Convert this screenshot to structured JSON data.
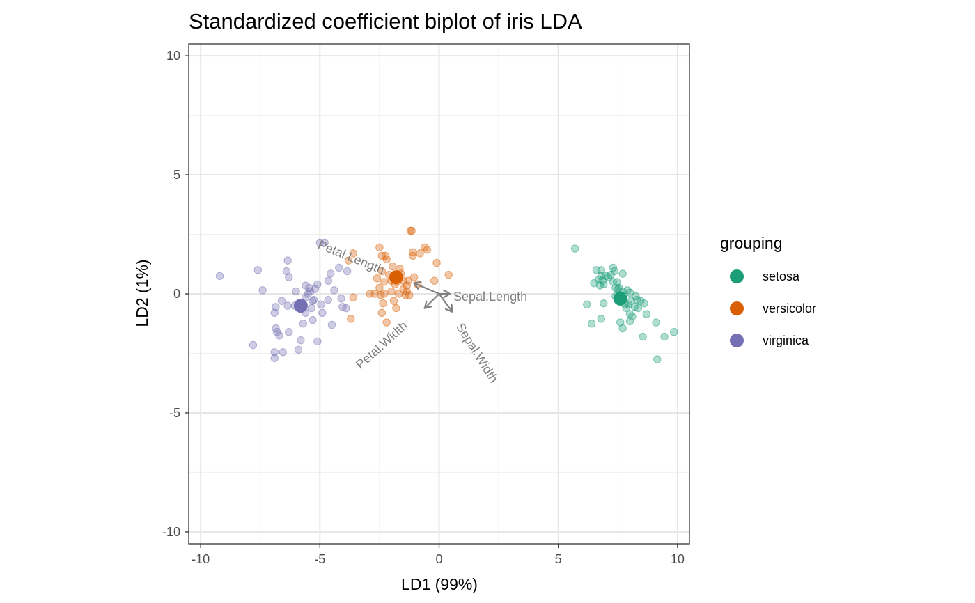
{
  "chart_data": {
    "type": "scatter",
    "title": "Standardized coefficient biplot of iris LDA",
    "xlabel": "LD1 (99%)",
    "ylabel": "LD2 (1%)",
    "xlim": [
      -10.5,
      10.5
    ],
    "ylim": [
      -10.5,
      10.5
    ],
    "x_ticks": [
      -10,
      -5,
      0,
      5,
      10
    ],
    "y_ticks": [
      -10,
      -5,
      0,
      5,
      10
    ],
    "x_tick_labels": [
      "-10",
      "-5",
      "0",
      "5",
      "10"
    ],
    "y_tick_labels": [
      "-10",
      "-5",
      "0",
      "5",
      "10"
    ],
    "grid": true,
    "legend_title": "grouping",
    "legend_position": "right",
    "series": [
      {
        "name": "setosa",
        "color": "#1b9e77",
        "centroid": [
          7.6,
          -0.2
        ],
        "points": [
          [
            5.7,
            1.9
          ],
          [
            6.2,
            -0.45
          ],
          [
            6.4,
            -1.25
          ],
          [
            6.5,
            0.45
          ],
          [
            6.6,
            1.0
          ],
          [
            6.7,
            0.6
          ],
          [
            6.8,
            1.0
          ],
          [
            6.8,
            0.75
          ],
          [
            6.8,
            -1.05
          ],
          [
            6.85,
            0.55
          ],
          [
            6.9,
            0.4
          ],
          [
            6.9,
            -0.4
          ],
          [
            7.0,
            0.75
          ],
          [
            7.1,
            0.7
          ],
          [
            7.2,
            0.8
          ],
          [
            7.3,
            1.1
          ],
          [
            7.3,
            0.5
          ],
          [
            7.35,
            0.95
          ],
          [
            7.4,
            0.25
          ],
          [
            7.4,
            -0.1
          ],
          [
            7.45,
            0.5
          ],
          [
            7.5,
            0.2
          ],
          [
            7.55,
            0.25
          ],
          [
            7.6,
            -1.2
          ],
          [
            7.6,
            -0.05
          ],
          [
            7.7,
            -1.45
          ],
          [
            7.7,
            0.85
          ],
          [
            7.7,
            0.1
          ],
          [
            7.8,
            -0.45
          ],
          [
            7.85,
            -0.6
          ],
          [
            7.9,
            0.15
          ],
          [
            7.95,
            -0.45
          ],
          [
            8.0,
            -0.85
          ],
          [
            8.0,
            0.05
          ],
          [
            8.0,
            -1.15
          ],
          [
            8.05,
            -0.3
          ],
          [
            8.1,
            -0.95
          ],
          [
            8.2,
            -0.55
          ],
          [
            8.25,
            -0.1
          ],
          [
            8.3,
            -0.25
          ],
          [
            8.35,
            -0.6
          ],
          [
            8.45,
            -0.3
          ],
          [
            8.55,
            -1.8
          ],
          [
            8.6,
            -0.4
          ],
          [
            8.7,
            -0.85
          ],
          [
            9.1,
            -1.2
          ],
          [
            9.15,
            -2.75
          ],
          [
            9.45,
            -1.8
          ],
          [
            9.85,
            -1.6
          ],
          [
            6.75,
            0.35
          ]
        ]
      },
      {
        "name": "versicolor",
        "color": "#d95f02",
        "centroid": [
          -1.8,
          0.7
        ],
        "points": [
          [
            -3.8,
            1.4
          ],
          [
            -3.6,
            1.7
          ],
          [
            -3.6,
            -0.15
          ],
          [
            -3.7,
            -1.05
          ],
          [
            -2.9,
            0.0
          ],
          [
            -2.7,
            0.0
          ],
          [
            -2.6,
            0.65
          ],
          [
            -2.5,
            1.95
          ],
          [
            -2.5,
            0.25
          ],
          [
            -2.45,
            -0.05
          ],
          [
            -2.4,
            0.95
          ],
          [
            -2.4,
            1.6
          ],
          [
            -2.35,
            -0.4
          ],
          [
            -2.4,
            -0.8
          ],
          [
            -2.3,
            0.0
          ],
          [
            -2.3,
            0.5
          ],
          [
            -2.25,
            1.6
          ],
          [
            -2.2,
            1.45
          ],
          [
            -2.2,
            -1.2
          ],
          [
            -2.1,
            0.8
          ],
          [
            -2.0,
            0.55
          ],
          [
            -2.0,
            0.1
          ],
          [
            -1.95,
            1.15
          ],
          [
            -1.9,
            -0.3
          ],
          [
            -1.85,
            0.4
          ],
          [
            -1.8,
            -0.6
          ],
          [
            -1.8,
            0.75
          ],
          [
            -1.75,
            0.5
          ],
          [
            -1.7,
            0.0
          ],
          [
            -1.65,
            1.05
          ],
          [
            -1.6,
            0.85
          ],
          [
            -1.5,
            0.2
          ],
          [
            -1.5,
            0.55
          ],
          [
            -1.4,
            -0.05
          ],
          [
            -1.35,
            0.35
          ],
          [
            -1.35,
            0.1
          ],
          [
            -1.3,
            0.55
          ],
          [
            -1.25,
            -0.05
          ],
          [
            -1.2,
            2.65
          ],
          [
            -1.15,
            2.65
          ],
          [
            -1.1,
            1.75
          ],
          [
            -1.1,
            1.6
          ],
          [
            -1.05,
            0.7
          ],
          [
            -0.9,
            0.4
          ],
          [
            -0.8,
            1.7
          ],
          [
            -0.6,
            1.95
          ],
          [
            -0.5,
            1.85
          ],
          [
            -0.2,
            0.55
          ],
          [
            -0.1,
            1.3
          ],
          [
            0.4,
            0.8
          ]
        ]
      },
      {
        "name": "virginica",
        "color": "#7570b3",
        "centroid": [
          -5.8,
          -0.5
        ],
        "points": [
          [
            -9.2,
            0.75
          ],
          [
            -7.8,
            -2.15
          ],
          [
            -7.6,
            1.0
          ],
          [
            -7.4,
            0.15
          ],
          [
            -6.9,
            -2.7
          ],
          [
            -6.9,
            -2.45
          ],
          [
            -6.9,
            -0.8
          ],
          [
            -6.85,
            -0.55
          ],
          [
            -6.85,
            -1.45
          ],
          [
            -6.8,
            -1.6
          ],
          [
            -6.7,
            -1.75
          ],
          [
            -6.6,
            -0.3
          ],
          [
            -6.55,
            -2.45
          ],
          [
            -6.4,
            0.95
          ],
          [
            -6.35,
            -0.5
          ],
          [
            -6.35,
            1.4
          ],
          [
            -6.3,
            -1.6
          ],
          [
            -6.3,
            0.7
          ],
          [
            -6.0,
            0.1
          ],
          [
            -5.9,
            -2.35
          ],
          [
            -5.8,
            -1.95
          ],
          [
            -5.7,
            -1.25
          ],
          [
            -5.6,
            -0.8
          ],
          [
            -5.6,
            0.35
          ],
          [
            -5.5,
            0.0
          ],
          [
            -5.45,
            0.25
          ],
          [
            -5.4,
            0.1
          ],
          [
            -5.35,
            -0.6
          ],
          [
            -5.3,
            -1.1
          ],
          [
            -5.3,
            -0.3
          ],
          [
            -5.2,
            0.2
          ],
          [
            -5.1,
            0.4
          ],
          [
            -5.1,
            -2.0
          ],
          [
            -5.0,
            2.15
          ],
          [
            -4.95,
            -0.45
          ],
          [
            -4.9,
            -0.8
          ],
          [
            -4.8,
            2.15
          ],
          [
            -4.65,
            0.55
          ],
          [
            -4.65,
            -0.25
          ],
          [
            -4.55,
            0.85
          ],
          [
            -4.5,
            -1.3
          ],
          [
            -4.4,
            0.15
          ],
          [
            -4.1,
            -0.2
          ],
          [
            -4.05,
            -0.55
          ],
          [
            -3.9,
            -0.6
          ],
          [
            -3.85,
            0.95
          ],
          [
            -4.2,
            1.1
          ],
          [
            -5.6,
            -0.15
          ],
          [
            -6.05,
            -0.5
          ],
          [
            -5.25,
            -0.25
          ]
        ]
      }
    ],
    "arrows": [
      {
        "name": "Sepal.Length",
        "end": [
          0.45,
          0.0
        ],
        "label": "Sepal.Length"
      },
      {
        "name": "Sepal.Width",
        "end": [
          0.55,
          -0.75
        ],
        "label": "Sepal.Width"
      },
      {
        "name": "Petal.Length",
        "end": [
          -1.05,
          0.45
        ],
        "label": "Petal.Length"
      },
      {
        "name": "Petal.Width",
        "end": [
          -0.6,
          -0.6
        ],
        "label": "Petal.Width"
      }
    ]
  }
}
